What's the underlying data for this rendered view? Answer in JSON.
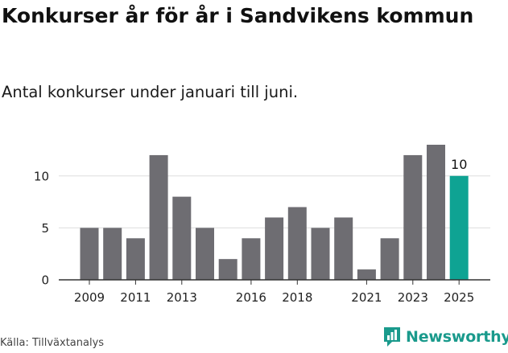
{
  "title": "Konkurser år för år i Sandvikens kommun",
  "subtitle": "Antal konkurser under januari till juni.",
  "source": "Källa: Tillväxtanalys",
  "brand": {
    "name": "Newsworthy",
    "color": "#1a9a8c",
    "icon": "newsworthy-logo-icon"
  },
  "colors": {
    "bar": "#6e6d72",
    "highlight": "#0fa393",
    "grid": "#dddddd",
    "axis": "#333333"
  },
  "chart_data": {
    "type": "bar",
    "title": "Konkurser år för år i Sandvikens kommun",
    "subtitle": "Antal konkurser under januari till juni.",
    "xlabel": "",
    "ylabel": "",
    "categories": [
      "2009",
      "2010",
      "2011",
      "2012",
      "2013",
      "2014",
      "2015",
      "2016",
      "2017",
      "2018",
      "2019",
      "2020",
      "2021",
      "2022",
      "2023",
      "2024",
      "2025"
    ],
    "values": [
      5,
      5,
      4,
      12,
      8,
      5,
      2,
      4,
      6,
      7,
      5,
      6,
      1,
      4,
      12,
      13,
      10
    ],
    "x_tick_labels": [
      "2009",
      "2011",
      "2013",
      "2016",
      "2018",
      "2021",
      "2023",
      "2025"
    ],
    "y_ticks": [
      0,
      5,
      10
    ],
    "ylim": [
      0,
      13
    ],
    "grid": true,
    "highlight": {
      "category": "2025",
      "label": "10"
    }
  }
}
